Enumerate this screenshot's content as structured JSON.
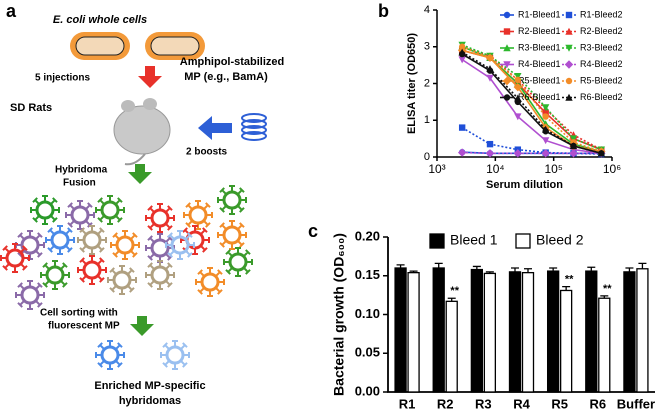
{
  "panel_labels": [
    "a",
    "b",
    "c"
  ],
  "diagram": {
    "bacteria_label": "E. coli whole cells",
    "injections": "5 injections",
    "antigen": [
      "Amphipol-stabilized",
      "MP (e.g., BamA)"
    ],
    "host": "SD Rats",
    "boosts": "2 boosts",
    "fusion": [
      "Hybridoma",
      "Fusion"
    ],
    "sorting": [
      "Cell sorting with",
      "fluorescent MP"
    ],
    "result": [
      "Enriched MP-specific",
      "hybridomas"
    ]
  },
  "chart_data": [
    {
      "type": "line",
      "x_label": "Serum dilution",
      "y_label": "ELISA titer (OD650)",
      "xscale": "log",
      "x": [
        2700,
        8100,
        24300,
        72900,
        218700,
        656100
      ],
      "xlim": [
        1000,
        1000000
      ],
      "xticks": [
        {
          "value": 1000,
          "label": "10³"
        },
        {
          "value": 10000,
          "label": "10⁴"
        },
        {
          "value": 100000,
          "label": "10⁵"
        },
        {
          "value": 1000000,
          "label": "10⁶"
        }
      ],
      "ylim": [
        0,
        4
      ],
      "yticks": [
        0,
        1,
        2,
        3,
        4
      ],
      "series": [
        {
          "name": "R1-Bleed1",
          "color": "#1f4fd8",
          "marker": "circle",
          "line_style": "solid",
          "values": [
            0.13,
            0.1,
            0.1,
            0.1,
            0.1,
            0.1
          ]
        },
        {
          "name": "R1-Bleed2",
          "color": "#1f4fd8",
          "marker": "square",
          "line_style": "dotted",
          "values": [
            0.8,
            0.35,
            0.2,
            0.12,
            0.1,
            0.08
          ]
        },
        {
          "name": "R2-Bleed1",
          "color": "#e8312a",
          "marker": "square",
          "line_style": "solid",
          "values": [
            2.9,
            2.7,
            2.0,
            1.2,
            0.5,
            0.2
          ]
        },
        {
          "name": "R2-Bleed2",
          "color": "#e8312a",
          "marker": "triangle",
          "line_style": "dotted",
          "values": [
            3.0,
            2.75,
            2.1,
            1.3,
            0.6,
            0.2
          ]
        },
        {
          "name": "R3-Bleed1",
          "color": "#2db82d",
          "marker": "triangle",
          "line_style": "solid",
          "values": [
            3.0,
            2.7,
            2.0,
            0.9,
            0.35,
            0.15
          ]
        },
        {
          "name": "R3-Bleed2",
          "color": "#2db82d",
          "marker": "triangle-down",
          "line_style": "dotted",
          "values": [
            3.05,
            2.75,
            2.2,
            1.35,
            0.5,
            0.2
          ]
        },
        {
          "name": "R4-Bleed1",
          "color": "#b04fd0",
          "marker": "triangle-down",
          "line_style": "solid",
          "values": [
            2.65,
            2.15,
            1.1,
            0.45,
            0.2,
            0.1
          ]
        },
        {
          "name": "R4-Bleed2",
          "color": "#b04fd0",
          "marker": "diamond",
          "line_style": "dotted",
          "values": [
            0.12,
            0.1,
            0.1,
            0.1,
            0.1,
            0.1
          ]
        },
        {
          "name": "R5-Bleed1",
          "color": "#f28c28",
          "marker": "diamond",
          "line_style": "solid",
          "values": [
            2.9,
            2.7,
            1.9,
            0.8,
            0.3,
            0.15
          ]
        },
        {
          "name": "R5-Bleed2",
          "color": "#f28c28",
          "marker": "circle",
          "line_style": "dotted",
          "values": [
            3.0,
            2.7,
            2.1,
            1.1,
            0.4,
            0.15
          ]
        },
        {
          "name": "R6-Bleed1",
          "color": "#111111",
          "marker": "circle",
          "line_style": "solid",
          "values": [
            2.8,
            2.35,
            1.5,
            0.7,
            0.3,
            0.1
          ]
        },
        {
          "name": "R6-Bleed2",
          "color": "#111111",
          "marker": "triangle",
          "line_style": "dotted",
          "values": [
            2.85,
            2.4,
            1.6,
            0.75,
            0.3,
            0.1
          ]
        }
      ]
    },
    {
      "type": "bar",
      "y_label": "Bacterial growth (OD₆₀₀)",
      "categories": [
        "R1",
        "R2",
        "R3",
        "R4",
        "R5",
        "R6",
        "Buffer"
      ],
      "ylim": [
        0,
        0.2
      ],
      "yticks": [
        {
          "value": 0,
          "label": "0.00"
        },
        0.05,
        {
          "value": 0.1,
          "label": "0.10"
        },
        0.15,
        {
          "value": 0.2,
          "label": "0.20"
        }
      ],
      "series": [
        {
          "name": "Bleed 1",
          "color": "#000000",
          "values": [
            0.16,
            0.16,
            0.158,
            0.155,
            0.156,
            0.156,
            0.155
          ],
          "errors": [
            0.004,
            0.006,
            0.004,
            0.005,
            0.004,
            0.005,
            0.005
          ]
        },
        {
          "name": "Bleed 2",
          "color": "#ffffff",
          "values": [
            0.154,
            0.117,
            0.153,
            0.154,
            0.131,
            0.121,
            0.159
          ],
          "errors": [
            0.002,
            0.004,
            0.002,
            0.005,
            0.005,
            0.003,
            0.007
          ],
          "annotations": [
            null,
            "**",
            null,
            null,
            "**",
            "**",
            null
          ]
        }
      ]
    }
  ]
}
